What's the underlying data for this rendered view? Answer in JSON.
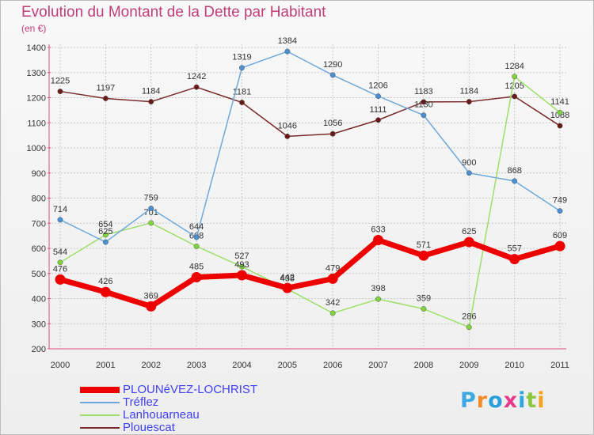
{
  "title": "Evolution du Montant de la Dette par Habitant",
  "unit": "(en €)",
  "logo": {
    "letters": [
      "P",
      "r",
      "o",
      "x",
      "i",
      "t",
      "i"
    ],
    "colors": [
      "#3da9e0",
      "#f28c28",
      "#2b9fd9",
      "#e93a8a",
      "#2aa7df",
      "#8cc63f",
      "#f6a21a"
    ]
  },
  "chart_data": {
    "type": "line",
    "x": [
      "2000",
      "2001",
      "2002",
      "2003",
      "2004",
      "2005",
      "2006",
      "2007",
      "2008",
      "2009",
      "2010",
      "2011"
    ],
    "ylim": [
      200,
      1400
    ],
    "yticks": [
      200,
      300,
      400,
      500,
      600,
      700,
      800,
      900,
      1000,
      1100,
      1200,
      1300,
      1400
    ],
    "grid": true,
    "legend": "bottom-left",
    "series": [
      {
        "name": "Plouescat",
        "color": "#7a2a2a",
        "marker": "#6b1a1a",
        "width": 1.5,
        "values": [
          1225,
          1197,
          1184,
          1242,
          1181,
          1046,
          1056,
          1111,
          1183,
          1184,
          1205,
          1088
        ]
      },
      {
        "name": "Lanhouarneau",
        "color": "#9ddf6a",
        "marker": "#7fd43c",
        "width": 1.5,
        "values": [
          544,
          654,
          701,
          608,
          527,
          438,
          342,
          398,
          359,
          286,
          1284,
          1141
        ]
      },
      {
        "name": "Tréflez",
        "color": "#6fa8dc",
        "marker": "#4a8fd4",
        "width": 1.5,
        "values": [
          714,
          625,
          759,
          644,
          1319,
          1384,
          1290,
          1206,
          1130,
          900,
          868,
          749
        ]
      },
      {
        "name": "PLOUNéVEZ-LOCHRIST",
        "color": "#ee0000",
        "marker": "#ee0000",
        "width": 7,
        "values": [
          476,
          426,
          369,
          485,
          493,
          442,
          479,
          633,
          571,
          625,
          557,
          609
        ]
      }
    ],
    "legend_order": [
      "PLOUNéVEZ-LOCHRIST",
      "Tréflez",
      "Lanhouarneau",
      "Plouescat"
    ]
  }
}
